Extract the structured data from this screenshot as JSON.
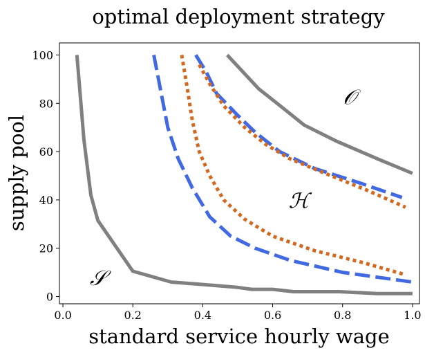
{
  "chart_data": {
    "type": "line",
    "title": "optimal deployment strategy",
    "xlabel": "standard service hourly wage",
    "ylabel": "supply pool",
    "xlim": [
      -0.01,
      1.02
    ],
    "ylim": [
      -3,
      105
    ],
    "xticks": [
      0.0,
      0.2,
      0.4,
      0.6,
      0.8,
      1.0
    ],
    "xtick_labels": [
      "0.0",
      "0.2",
      "0.4",
      "0.6",
      "0.8",
      "1.0"
    ],
    "yticks": [
      0,
      20,
      40,
      60,
      80,
      100
    ],
    "ytick_labels": [
      "0",
      "20",
      "40",
      "60",
      "80",
      "100"
    ],
    "grid": false,
    "series": [
      {
        "style": "solid",
        "color": "#808080",
        "x": [
          0.04,
          0.06,
          0.08,
          0.1,
          0.2,
          0.31,
          0.4,
          0.5,
          0.54,
          0.6,
          0.66,
          0.72,
          0.79,
          0.9,
          1.0
        ],
        "y": [
          100,
          65,
          42,
          31.5,
          10.5,
          6,
          5,
          3.8,
          3,
          3,
          2,
          2,
          2,
          1.2,
          1.2
        ]
      },
      {
        "style": "solid",
        "color": "#808080",
        "x": [
          0.47,
          0.56,
          0.63,
          0.69,
          0.78,
          0.9,
          1.0
        ],
        "y": [
          100,
          86,
          78,
          71,
          64.5,
          57,
          51
        ]
      },
      {
        "style": "dashed",
        "color": "#4169e1",
        "x": [
          0.26,
          0.28,
          0.3,
          0.33,
          0.37,
          0.42,
          0.48,
          0.55,
          0.65,
          0.8,
          1.0
        ],
        "y": [
          100,
          85,
          70,
          57,
          45,
          33,
          25,
          20,
          15,
          10,
          6
        ]
      },
      {
        "style": "dashed",
        "color": "#4169e1",
        "x": [
          0.38,
          0.41,
          0.44,
          0.5,
          0.55,
          0.62,
          0.72,
          0.85,
          0.97
        ],
        "y": [
          100,
          93,
          84,
          75,
          68,
          60,
          53,
          47,
          41
        ]
      },
      {
        "style": "dotted",
        "color": "#d2691e",
        "x": [
          0.34,
          0.355,
          0.37,
          0.39,
          0.42,
          0.46,
          0.52,
          0.6,
          0.72,
          0.86,
          0.98
        ],
        "y": [
          100,
          87,
          73,
          60,
          50,
          40,
          32,
          25,
          19,
          14,
          9
        ]
      },
      {
        "style": "dotted",
        "color": "#d2691e",
        "x": [
          0.39,
          0.42,
          0.46,
          0.52,
          0.58,
          0.65,
          0.75,
          0.87,
          0.98
        ],
        "y": [
          96,
          88,
          79,
          70,
          63,
          57,
          51,
          44,
          37
        ]
      }
    ],
    "annotations": [
      {
        "text": "𝒪",
        "x": 0.82,
        "y": 82
      },
      {
        "text": "ℋ",
        "x": 0.675,
        "y": 39
      },
      {
        "text": "𝒮",
        "x": 0.1,
        "y": 7
      }
    ]
  }
}
